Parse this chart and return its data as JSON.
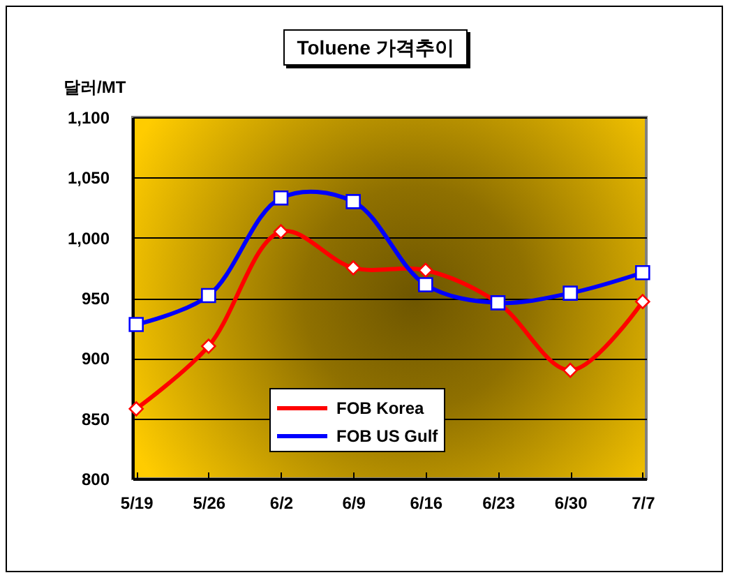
{
  "chart_data": {
    "type": "line",
    "title": "Toluene 가격추이",
    "ylabel": "달러/MT",
    "categories": [
      "5/19",
      "5/26",
      "6/2",
      "6/9",
      "6/16",
      "6/23",
      "6/30",
      "7/7"
    ],
    "series": [
      {
        "name": "FOB Korea",
        "color": "#ff0000",
        "marker": "diamond",
        "values": [
          858,
          910,
          1005,
          975,
          973,
          946,
          890,
          947
        ]
      },
      {
        "name": "FOB US Gulf",
        "color": "#0000ff",
        "marker": "square",
        "values": [
          928,
          952,
          1033,
          1030,
          961,
          946,
          954,
          971
        ]
      }
    ],
    "ylim": [
      800,
      1100
    ],
    "yticks": [
      800,
      850,
      900,
      950,
      {
        "value": 1000,
        "label": "1,000"
      },
      {
        "value": 1050,
        "label": "1,050"
      },
      {
        "value": 1100,
        "label": "1,100"
      }
    ],
    "grid": "y",
    "legend": "bottom",
    "line_style": "solid"
  }
}
